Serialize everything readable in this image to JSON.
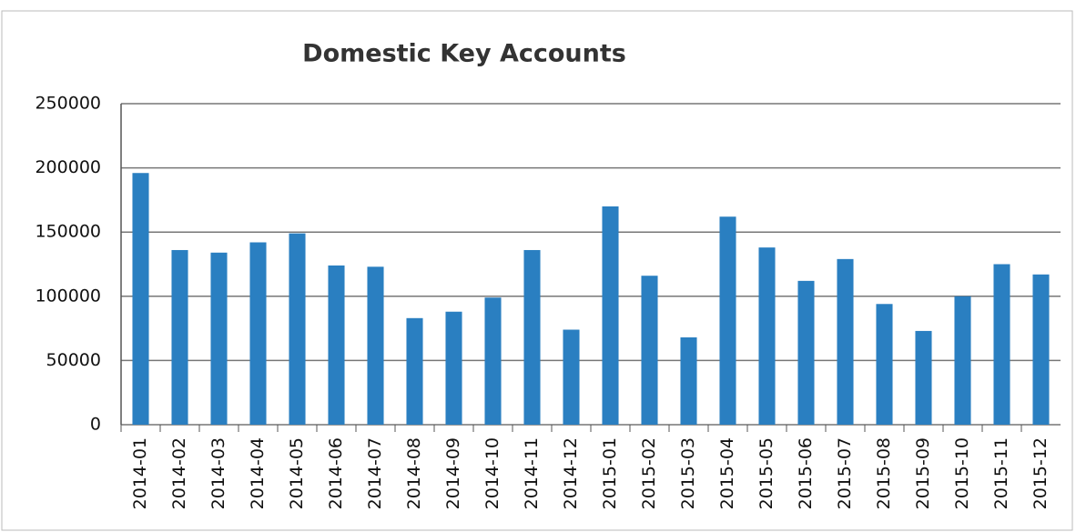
{
  "chart_data": {
    "type": "bar",
    "title": "Domestic Key Accounts",
    "categories": [
      "2014-01",
      "2014-02",
      "2014-03",
      "2014-04",
      "2014-05",
      "2014-06",
      "2014-07",
      "2014-08",
      "2014-09",
      "2014-10",
      "2014-11",
      "2014-12",
      "2015-01",
      "2015-02",
      "2015-03",
      "2015-04",
      "2015-05",
      "2015-06",
      "2015-07",
      "2015-08",
      "2015-09",
      "2015-10",
      "2015-11",
      "2015-12"
    ],
    "values": [
      196000,
      136000,
      134000,
      142000,
      149000,
      124000,
      123000,
      83000,
      88000,
      99000,
      136000,
      74000,
      170000,
      116000,
      68000,
      162000,
      138000,
      112000,
      129000,
      94000,
      73000,
      100000,
      125000,
      117000
    ],
    "color": "#2a7fc1",
    "ylim": [
      0,
      250000
    ],
    "yticks": [
      0,
      50000,
      100000,
      150000,
      200000,
      250000
    ],
    "grid": true
  }
}
